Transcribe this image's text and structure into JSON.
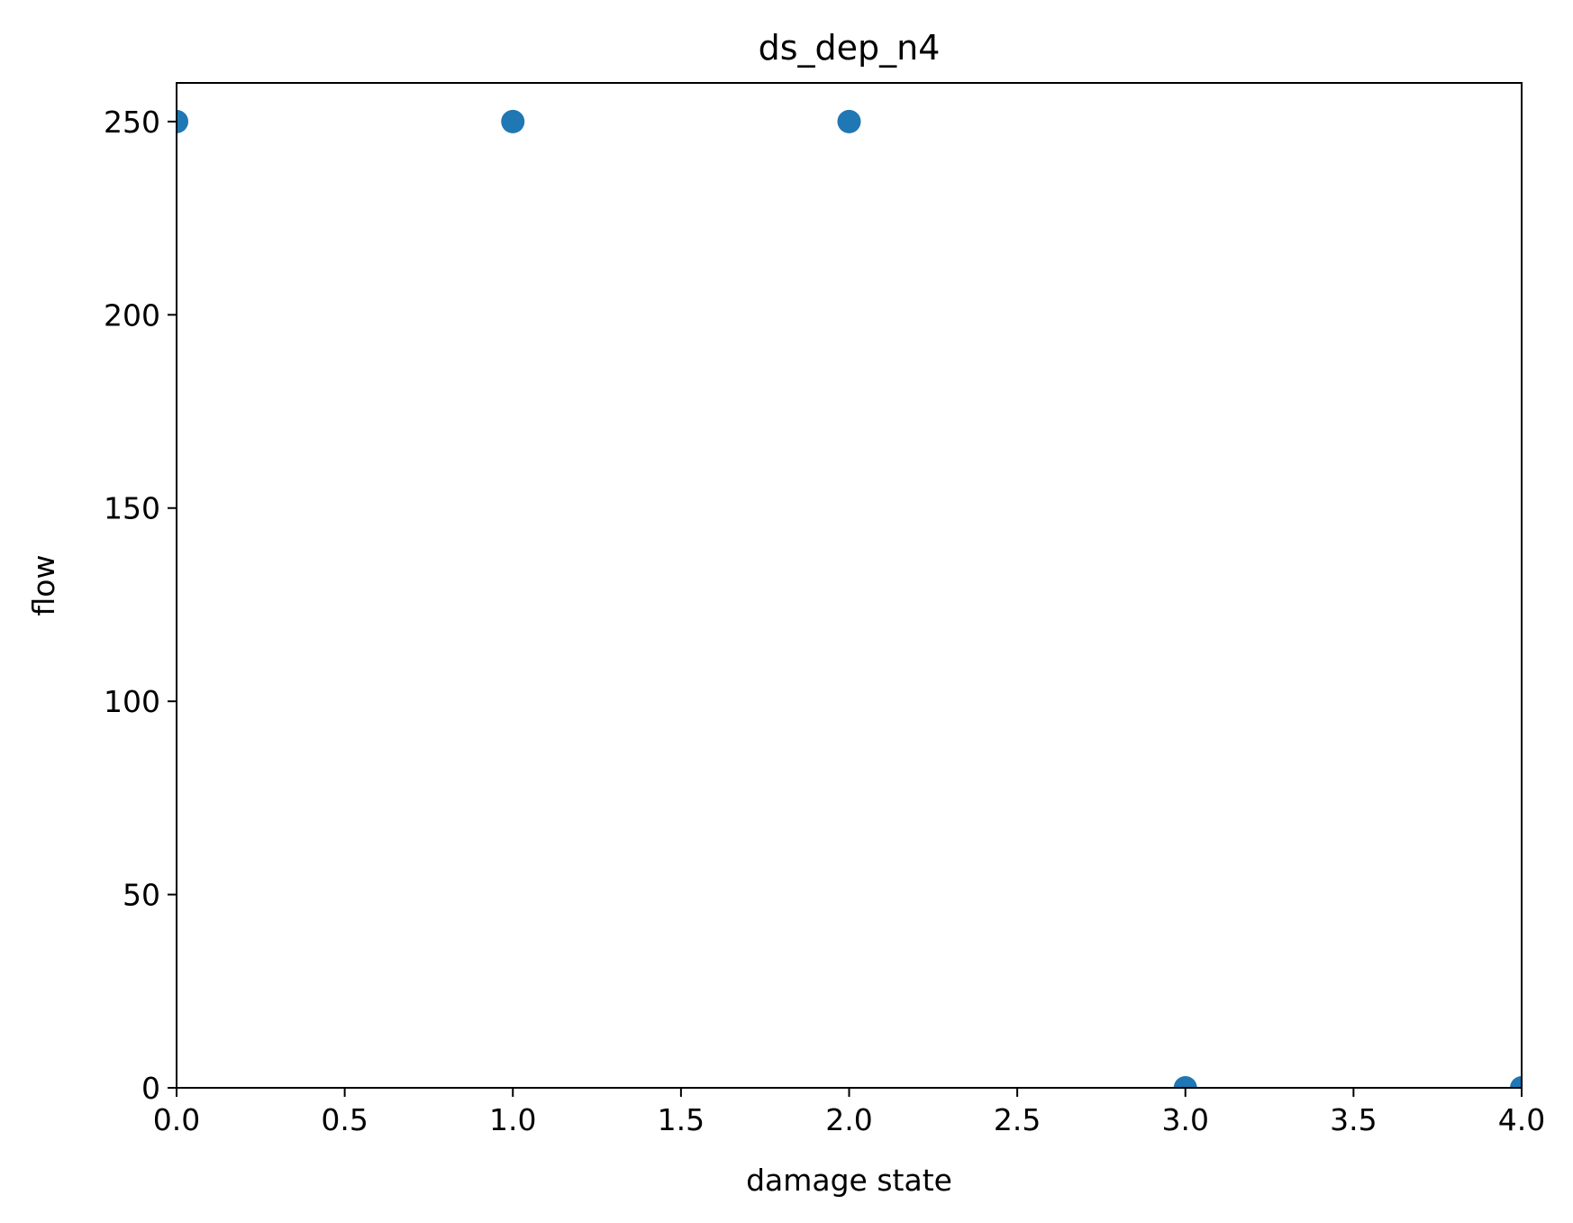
{
  "chart_data": {
    "type": "scatter",
    "title": "ds_dep_n4",
    "xlabel": "damage state",
    "ylabel": "flow",
    "xlim": [
      0.0,
      4.0
    ],
    "ylim": [
      0,
      260
    ],
    "xticks": [
      0.0,
      0.5,
      1.0,
      1.5,
      2.0,
      2.5,
      3.0,
      3.5,
      4.0
    ],
    "xtick_labels": [
      "0.0",
      "0.5",
      "1.0",
      "1.5",
      "2.0",
      "2.5",
      "3.0",
      "3.5",
      "4.0"
    ],
    "yticks": [
      0,
      50,
      100,
      150,
      200,
      250
    ],
    "ytick_labels": [
      "0",
      "50",
      "100",
      "150",
      "200",
      "250"
    ],
    "grid": false,
    "series": [
      {
        "color": "#1f77b4",
        "x": [
          0,
          1,
          2,
          3,
          4
        ],
        "y": [
          250,
          250,
          250,
          0,
          0
        ]
      }
    ]
  }
}
